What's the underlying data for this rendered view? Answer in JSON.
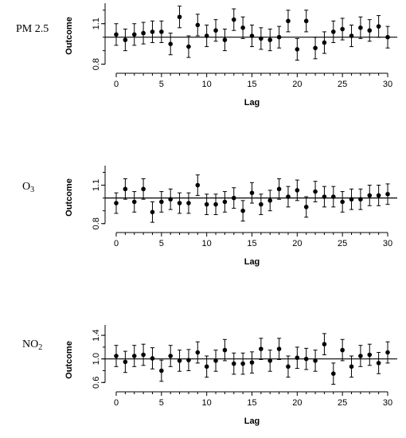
{
  "chart_data": [
    {
      "type": "scatter",
      "panel_label": "PM 2.5",
      "xlabel": "Lag",
      "ylabel": "Outcome",
      "xlim": [
        0,
        30
      ],
      "ylim": [
        0.78,
        1.24
      ],
      "xticks": [
        0,
        5,
        10,
        15,
        20,
        25,
        30
      ],
      "yticks": [
        0.8,
        1.1
      ],
      "ytick_labels": [
        "0.8",
        "1.1"
      ],
      "reference_line": 1.0,
      "x": [
        0,
        1,
        2,
        3,
        4,
        5,
        6,
        7,
        8,
        9,
        10,
        11,
        12,
        13,
        14,
        15,
        16,
        17,
        18,
        19,
        20,
        21,
        22,
        23,
        24,
        25,
        26,
        27,
        28,
        29,
        30
      ],
      "y": [
        1.02,
        0.98,
        1.02,
        1.03,
        1.04,
        1.04,
        0.95,
        1.15,
        0.93,
        1.09,
        1.01,
        1.05,
        0.98,
        1.13,
        1.07,
        1.01,
        0.99,
        0.98,
        1.0,
        1.12,
        0.91,
        1.12,
        0.92,
        0.96,
        1.04,
        1.06,
        1.01,
        1.07,
        1.05,
        1.08,
        1.0
      ],
      "lower": [
        0.94,
        0.9,
        0.94,
        0.95,
        0.96,
        0.96,
        0.87,
        1.07,
        0.85,
        1.01,
        0.93,
        0.97,
        0.9,
        1.05,
        0.99,
        0.93,
        0.91,
        0.9,
        0.92,
        1.04,
        0.83,
        1.04,
        0.84,
        0.88,
        0.96,
        0.98,
        0.93,
        0.99,
        0.97,
        1.0,
        0.92
      ],
      "upper": [
        1.1,
        1.06,
        1.1,
        1.11,
        1.12,
        1.12,
        1.03,
        1.23,
        1.01,
        1.17,
        1.09,
        1.13,
        1.06,
        1.21,
        1.15,
        1.09,
        1.07,
        1.06,
        1.08,
        1.2,
        0.99,
        1.2,
        1.0,
        1.04,
        1.12,
        1.14,
        1.09,
        1.15,
        1.13,
        1.16,
        1.08
      ]
    },
    {
      "type": "scatter",
      "panel_label": "O3",
      "xlabel": "Lag",
      "ylabel": "Outcome",
      "xlim": [
        0,
        30
      ],
      "ylim": [
        0.78,
        1.24
      ],
      "xticks": [
        0,
        5,
        10,
        15,
        20,
        25,
        30
      ],
      "yticks": [
        0.8,
        1.1
      ],
      "ytick_labels": [
        "0.8",
        "1.1"
      ],
      "reference_line": 1.0,
      "x": [
        0,
        1,
        2,
        3,
        4,
        5,
        6,
        7,
        8,
        9,
        10,
        11,
        12,
        13,
        14,
        15,
        16,
        17,
        18,
        19,
        20,
        21,
        22,
        23,
        24,
        25,
        26,
        27,
        28,
        29,
        30
      ],
      "y": [
        0.96,
        1.07,
        0.97,
        1.07,
        0.89,
        0.97,
        0.99,
        0.96,
        0.96,
        1.1,
        0.95,
        0.95,
        0.97,
        1.0,
        0.9,
        1.04,
        0.95,
        0.98,
        1.07,
        1.01,
        1.06,
        0.93,
        1.05,
        1.01,
        1.01,
        0.97,
        0.99,
        0.99,
        1.02,
        1.02,
        1.03
      ],
      "lower": [
        0.88,
        0.99,
        0.89,
        0.99,
        0.81,
        0.89,
        0.91,
        0.88,
        0.88,
        1.02,
        0.87,
        0.87,
        0.89,
        0.92,
        0.82,
        0.96,
        0.87,
        0.9,
        0.99,
        0.93,
        0.98,
        0.85,
        0.97,
        0.93,
        0.93,
        0.89,
        0.91,
        0.91,
        0.94,
        0.94,
        0.95
      ],
      "upper": [
        1.04,
        1.15,
        1.05,
        1.15,
        0.97,
        1.05,
        1.07,
        1.04,
        1.04,
        1.18,
        1.03,
        1.03,
        1.05,
        1.08,
        0.98,
        1.12,
        1.03,
        1.06,
        1.15,
        1.09,
        1.14,
        1.01,
        1.13,
        1.09,
        1.09,
        1.05,
        1.07,
        1.07,
        1.1,
        1.1,
        1.11
      ]
    },
    {
      "type": "scatter",
      "panel_label": "NO2",
      "xlabel": "Lag",
      "ylabel": "Outcome",
      "xlim": [
        0,
        30
      ],
      "ylim": [
        0.55,
        1.55
      ],
      "xticks": [
        0,
        5,
        10,
        15,
        20,
        25,
        30
      ],
      "yticks": [
        0.6,
        1.0,
        1.4
      ],
      "ytick_labels": [
        "0.6",
        "1.0",
        "1.4"
      ],
      "reference_line": 1.0,
      "x": [
        0,
        1,
        2,
        3,
        4,
        5,
        6,
        7,
        8,
        9,
        10,
        11,
        12,
        13,
        14,
        15,
        16,
        17,
        18,
        19,
        20,
        21,
        22,
        23,
        24,
        25,
        26,
        27,
        28,
        29,
        30
      ],
      "y": [
        1.05,
        0.95,
        1.05,
        1.07,
        1.01,
        0.8,
        1.05,
        0.97,
        0.98,
        1.11,
        0.87,
        0.97,
        1.15,
        0.92,
        0.92,
        0.94,
        1.17,
        0.97,
        1.17,
        0.87,
        1.02,
        1.0,
        0.97,
        1.25,
        0.75,
        1.15,
        0.87,
        1.05,
        1.07,
        0.93,
        1.11
      ],
      "lower": [
        0.87,
        0.77,
        0.87,
        0.89,
        0.83,
        0.62,
        0.87,
        0.79,
        0.8,
        0.93,
        0.69,
        0.79,
        0.97,
        0.74,
        0.74,
        0.76,
        0.99,
        0.79,
        0.99,
        0.69,
        0.84,
        0.82,
        0.79,
        1.07,
        0.57,
        0.97,
        0.69,
        0.87,
        0.89,
        0.75,
        0.93
      ],
      "upper": [
        1.23,
        1.13,
        1.23,
        1.25,
        1.19,
        0.98,
        1.23,
        1.15,
        1.16,
        1.29,
        1.05,
        1.15,
        1.33,
        1.1,
        1.1,
        1.12,
        1.35,
        1.15,
        1.35,
        1.05,
        1.2,
        1.18,
        1.15,
        1.43,
        0.93,
        1.33,
        1.05,
        1.23,
        1.25,
        1.11,
        1.29
      ]
    }
  ]
}
